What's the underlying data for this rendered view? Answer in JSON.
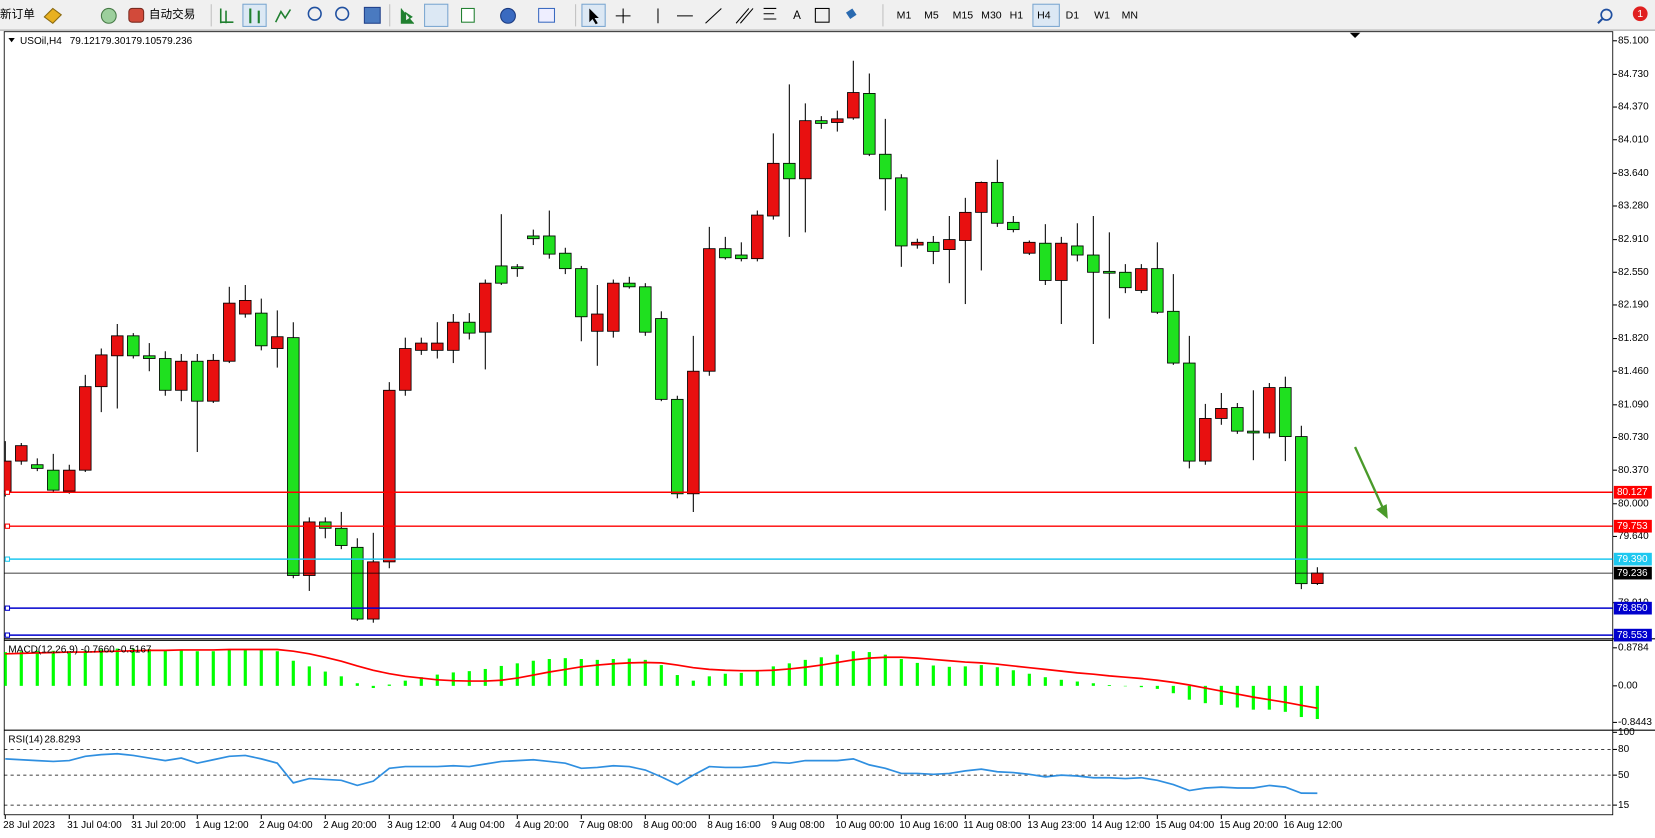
{
  "toolbar": {
    "new_order": "新订单",
    "auto_trading": "自动交易",
    "text_tool": "A",
    "timeframes": [
      "M1",
      "M5",
      "M15",
      "M30",
      "H1",
      "H4",
      "D1",
      "W1",
      "MN"
    ],
    "active_timeframe": "H4",
    "notifications": "1"
  },
  "chart_data": [
    {
      "type": "candlestick",
      "title": "USOil,H4",
      "categories": [
        "28 Jul 2023",
        null,
        null,
        null,
        "31 Jul 04:00",
        null,
        null,
        null,
        "31 Jul 20:00",
        null,
        null,
        null,
        "1 Aug 12:00",
        null,
        null,
        null,
        "2 Aug 04:00",
        null,
        null,
        null,
        "2 Aug 20:00",
        null,
        null,
        null,
        "3 Aug 12:00",
        null,
        null,
        null,
        "4 Aug 04:00",
        null,
        null,
        null,
        "4 Aug 20:00",
        null,
        null,
        null,
        "7 Aug 08:00",
        null,
        null,
        null,
        "8 Aug 00:00",
        null,
        null,
        null,
        "8 Aug 16:00",
        null,
        null,
        null,
        "9 Aug 08:00",
        null,
        null,
        null,
        "10 Aug 00:00",
        null,
        null,
        null,
        "10 Aug 16:00",
        null,
        null,
        null,
        "11 Aug 08:00",
        null,
        null,
        null,
        "13 Aug 23:00",
        null,
        null,
        null,
        "14 Aug 12:00",
        null,
        null,
        null,
        "15 Aug 04:00",
        null,
        null,
        null,
        "15 Aug 20:00",
        null,
        null,
        null,
        "16 Aug 12:00",
        null,
        null
      ],
      "open": [
        80.14,
        80.47,
        80.43,
        80.37,
        80.14,
        80.37,
        81.29,
        81.63,
        81.85,
        81.63,
        81.6,
        81.25,
        81.57,
        81.13,
        81.57,
        82.09,
        82.1,
        81.71,
        81.83,
        79.21,
        79.8,
        79.73,
        79.52,
        78.73,
        79.36,
        81.25,
        81.69,
        81.69,
        81.69,
        82.0,
        81.89,
        82.62,
        82.61,
        82.95,
        82.95,
        82.76,
        82.59,
        81.9,
        81.9,
        82.43,
        82.39,
        82.04,
        81.15,
        80.11,
        81.46,
        82.81,
        82.74,
        82.7,
        83.17,
        83.75,
        83.58,
        84.22,
        84.2,
        84.25,
        84.52,
        83.85,
        83.59,
        82.85,
        82.88,
        82.8,
        82.9,
        83.21,
        83.54,
        83.1,
        82.76,
        82.87,
        82.46,
        82.84,
        82.74,
        82.56,
        82.55,
        82.35,
        82.59,
        82.12,
        81.55,
        80.47,
        80.94,
        81.06,
        80.8,
        80.78,
        81.28,
        80.74,
        79.121
      ],
      "high": [
        80.69,
        80.67,
        80.5,
        80.55,
        80.43,
        81.42,
        81.71,
        81.98,
        81.88,
        81.77,
        81.68,
        81.65,
        81.65,
        81.65,
        82.39,
        82.41,
        82.26,
        82.13,
        82.0,
        79.85,
        79.85,
        79.91,
        79.62,
        79.68,
        81.34,
        81.83,
        81.83,
        82.0,
        82.09,
        82.1,
        82.47,
        83.19,
        82.64,
        83.02,
        83.23,
        82.82,
        82.62,
        82.41,
        82.47,
        82.5,
        82.43,
        82.12,
        81.19,
        81.85,
        83.05,
        82.94,
        82.88,
        83.23,
        84.08,
        84.62,
        84.41,
        84.27,
        84.33,
        84.88,
        84.74,
        84.24,
        83.63,
        82.92,
        82.95,
        83.17,
        83.37,
        83.55,
        83.79,
        83.17,
        82.9,
        83.08,
        82.94,
        83.09,
        83.17,
        82.99,
        82.64,
        82.64,
        82.88,
        82.53,
        81.85,
        81.1,
        81.22,
        81.11,
        81.25,
        81.33,
        81.4,
        80.86,
        79.301
      ],
      "low": [
        80.08,
        80.43,
        80.36,
        80.13,
        80.11,
        80.35,
        81.01,
        81.05,
        81.6,
        81.46,
        81.19,
        81.13,
        80.57,
        81.11,
        81.55,
        82.05,
        81.69,
        81.5,
        79.18,
        79.04,
        79.62,
        79.5,
        78.71,
        78.69,
        79.29,
        81.19,
        81.64,
        81.6,
        81.55,
        81.81,
        81.48,
        82.41,
        82.5,
        82.85,
        82.7,
        82.53,
        81.79,
        81.52,
        81.83,
        82.37,
        81.85,
        81.13,
        80.06,
        79.91,
        81.41,
        82.69,
        82.67,
        82.67,
        83.13,
        82.94,
        82.99,
        84.13,
        84.1,
        84.23,
        83.83,
        83.23,
        82.61,
        82.81,
        82.64,
        82.43,
        82.2,
        82.57,
        83.05,
        82.99,
        82.74,
        82.41,
        81.98,
        82.67,
        81.76,
        82.04,
        82.32,
        82.32,
        82.09,
        81.53,
        80.39,
        80.43,
        80.87,
        80.77,
        80.48,
        80.72,
        80.47,
        79.06,
        79.105
      ],
      "close": [
        80.47,
        80.64,
        80.39,
        80.15,
        80.37,
        81.29,
        81.64,
        81.85,
        81.63,
        81.6,
        81.25,
        81.57,
        81.13,
        81.58,
        82.21,
        82.24,
        81.74,
        81.84,
        79.21,
        79.8,
        79.73,
        79.54,
        78.73,
        79.36,
        81.25,
        81.71,
        81.77,
        81.77,
        82.0,
        81.88,
        82.43,
        82.43,
        82.59,
        82.92,
        82.75,
        82.59,
        82.06,
        82.09,
        82.43,
        82.39,
        81.89,
        81.15,
        80.11,
        81.46,
        82.81,
        82.71,
        82.7,
        83.18,
        83.75,
        83.58,
        84.22,
        84.19,
        84.24,
        84.53,
        83.85,
        83.58,
        82.84,
        82.88,
        82.78,
        82.91,
        83.21,
        83.54,
        83.09,
        83.02,
        82.88,
        82.46,
        82.87,
        82.74,
        82.55,
        82.54,
        82.38,
        82.59,
        82.11,
        81.55,
        80.47,
        80.94,
        81.05,
        80.8,
        80.78,
        81.28,
        80.74,
        79.12,
        79.236
      ],
      "up_color": "#e81010",
      "down_color": "#1fe01f",
      "ylim": [
        78.53,
        85.2
      ],
      "yticks": [
        {
          "value": 85.1,
          "label": "85.100"
        },
        {
          "value": 84.73,
          "label": "84.730"
        },
        {
          "value": 84.37,
          "label": "84.370"
        },
        {
          "value": 84.01,
          "label": "84.010"
        },
        {
          "value": 83.64,
          "label": "83.640"
        },
        {
          "value": 83.28,
          "label": "83.280"
        },
        {
          "value": 82.91,
          "label": "82.910"
        },
        {
          "value": 82.55,
          "label": "82.550"
        },
        {
          "value": 82.19,
          "label": "82.190"
        },
        {
          "value": 81.82,
          "label": "81.820"
        },
        {
          "value": 81.46,
          "label": "81.460"
        },
        {
          "value": 81.09,
          "label": "81.090"
        },
        {
          "value": 80.73,
          "label": "80.730"
        },
        {
          "value": 80.37,
          "label": "80.370"
        },
        {
          "value": 80.0,
          "label": "80.000"
        },
        {
          "value": 79.64,
          "label": "79.640"
        },
        {
          "value": 78.91,
          "label": "78.910"
        }
      ],
      "levels": [
        {
          "price": 80.127,
          "color": "#ff0000"
        },
        {
          "price": 79.753,
          "color": "#ff0000"
        },
        {
          "price": {
            "value": 79.39,
            "label": "79.390"
          },
          "color": "#1ec8f0"
        },
        {
          "price": {
            "value": 78.85,
            "label": "78.850"
          },
          "color": "#0000cd"
        },
        {
          "price": 78.553,
          "color": "#0000cd"
        }
      ]
    },
    {
      "type": "macd",
      "title": "MACD(12,26,9) -0.7660 -0.5167",
      "series": [
        {
          "type": "bar",
          "color": "#00ff00",
          "values": [
            0.78,
            0.8,
            0.81,
            0.81,
            0.8,
            0.82,
            0.84,
            0.86,
            0.86,
            0.85,
            0.83,
            0.82,
            0.8,
            0.8,
            0.83,
            0.85,
            0.84,
            0.8,
            0.58,
            0.45,
            0.33,
            0.22,
            0.06,
            -0.05,
            0.03,
            0.12,
            0.2,
            0.26,
            0.31,
            0.34,
            0.39,
            0.46,
            0.52,
            0.58,
            0.62,
            0.64,
            0.62,
            0.6,
            0.62,
            0.63,
            0.6,
            0.48,
            0.25,
            0.12,
            0.22,
            0.28,
            0.3,
            0.36,
            0.45,
            0.52,
            0.6,
            0.66,
            0.72,
            0.8,
            0.78,
            0.72,
            0.62,
            0.53,
            0.47,
            0.44,
            0.45,
            0.48,
            0.43,
            0.36,
            0.28,
            0.2,
            0.14,
            0.1,
            0.06,
            0.02,
            -0.01,
            -0.03,
            -0.07,
            -0.17,
            -0.32,
            -0.4,
            -0.44,
            -0.5,
            -0.55,
            -0.55,
            -0.6,
            -0.72,
            -0.766
          ]
        },
        {
          "type": "line",
          "color": "#ff0000",
          "values": [
            0.74,
            0.75,
            0.76,
            0.77,
            0.78,
            0.78,
            0.79,
            0.8,
            0.81,
            0.82,
            0.82,
            0.83,
            0.83,
            0.83,
            0.84,
            0.84,
            0.84,
            0.84,
            0.8,
            0.74,
            0.66,
            0.57,
            0.46,
            0.36,
            0.28,
            0.22,
            0.18,
            0.14,
            0.12,
            0.11,
            0.11,
            0.13,
            0.18,
            0.25,
            0.32,
            0.38,
            0.44,
            0.48,
            0.51,
            0.53,
            0.54,
            0.53,
            0.48,
            0.42,
            0.38,
            0.36,
            0.35,
            0.35,
            0.36,
            0.39,
            0.43,
            0.48,
            0.54,
            0.6,
            0.64,
            0.66,
            0.66,
            0.64,
            0.61,
            0.58,
            0.55,
            0.53,
            0.5,
            0.46,
            0.42,
            0.38,
            0.34,
            0.3,
            0.27,
            0.23,
            0.2,
            0.17,
            0.13,
            0.08,
            0.02,
            -0.05,
            -0.12,
            -0.19,
            -0.26,
            -0.32,
            -0.38,
            -0.45,
            -0.5167
          ]
        }
      ],
      "ylim": [
        -1.0,
        1.05
      ],
      "yticks": [
        0.8784,
        {
          "value": 0,
          "label": "0.00"
        },
        -0.8443
      ]
    },
    {
      "type": "line",
      "title": "RSI(14)",
      "series": [
        {
          "color": "#2f8fe0",
          "values": [
            69,
            68,
            67,
            66,
            67,
            72,
            74,
            75,
            73,
            70,
            67,
            70,
            64,
            68,
            72,
            73,
            69,
            64,
            41,
            46,
            45,
            44,
            38,
            43,
            58,
            60,
            60,
            60,
            61,
            60,
            63,
            66,
            67,
            68,
            66,
            64,
            58,
            59,
            61,
            60,
            56,
            48,
            39,
            50,
            60,
            59,
            59,
            61,
            65,
            64,
            67,
            67,
            67,
            69,
            62,
            58,
            52,
            52,
            51,
            52,
            55,
            57,
            54,
            53,
            51,
            48,
            50,
            49,
            47,
            47,
            46,
            47,
            44,
            39,
            32,
            35,
            36,
            35,
            35,
            38,
            36,
            29,
            28.8293
          ]
        }
      ],
      "ylim": [
        3.75,
        101.25
      ],
      "yticks": [
        100,
        80,
        50,
        15
      ],
      "levels": [
        80,
        50,
        15
      ]
    }
  ]
}
